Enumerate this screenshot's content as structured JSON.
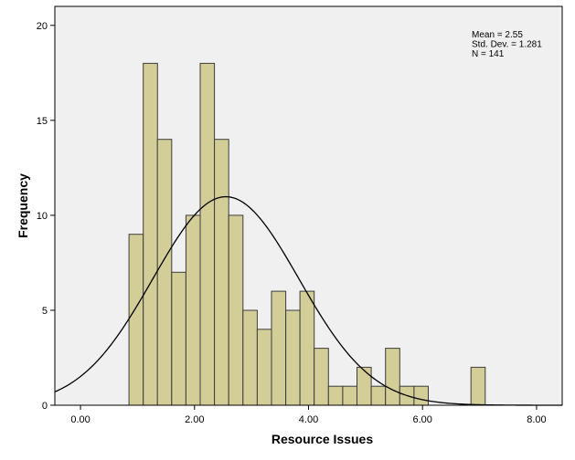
{
  "chart_data": {
    "type": "bar",
    "subtype": "histogram",
    "xlabel": "Resource Issues",
    "ylabel": "Frequency",
    "xlim": [
      -0.45,
      8.45
    ],
    "ylim": [
      0,
      21
    ],
    "x_ticks": [
      0,
      2,
      4,
      6,
      8
    ],
    "x_tick_labels": [
      "0.00",
      "2.00",
      "4.00",
      "6.00",
      "8.00"
    ],
    "y_ticks": [
      0,
      5,
      10,
      15,
      20
    ],
    "y_tick_labels": [
      "0",
      "5",
      "10",
      "15",
      "20"
    ],
    "bin_width": 0.25,
    "bins": [
      {
        "start": 0.85,
        "count": 9
      },
      {
        "start": 1.1,
        "count": 18
      },
      {
        "start": 1.35,
        "count": 14
      },
      {
        "start": 1.6,
        "count": 7
      },
      {
        "start": 1.85,
        "count": 10
      },
      {
        "start": 2.1,
        "count": 18
      },
      {
        "start": 2.35,
        "count": 14
      },
      {
        "start": 2.6,
        "count": 10
      },
      {
        "start": 2.85,
        "count": 5
      },
      {
        "start": 3.1,
        "count": 4
      },
      {
        "start": 3.35,
        "count": 6
      },
      {
        "start": 3.6,
        "count": 5
      },
      {
        "start": 3.85,
        "count": 6
      },
      {
        "start": 4.1,
        "count": 3
      },
      {
        "start": 4.35,
        "count": 1
      },
      {
        "start": 4.6,
        "count": 1
      },
      {
        "start": 4.85,
        "count": 2
      },
      {
        "start": 5.1,
        "count": 1
      },
      {
        "start": 5.35,
        "count": 3
      },
      {
        "start": 5.6,
        "count": 1
      },
      {
        "start": 5.85,
        "count": 1
      },
      {
        "start": 6.85,
        "count": 2
      }
    ],
    "normal_curve": {
      "mean": 2.55,
      "std_dev": 1.281,
      "n": 141
    },
    "stats_text": [
      "Mean = 2.55",
      "Std. Dev. = 1.281",
      "N = 141"
    ],
    "legend_position": "top-right",
    "grid": false
  },
  "colors": {
    "plot_background": "#f0f0f0",
    "bar_fill": "#d3ce97",
    "bar_stroke": "#3c3c3c",
    "curve": "#000000",
    "axis": "#000000"
  }
}
